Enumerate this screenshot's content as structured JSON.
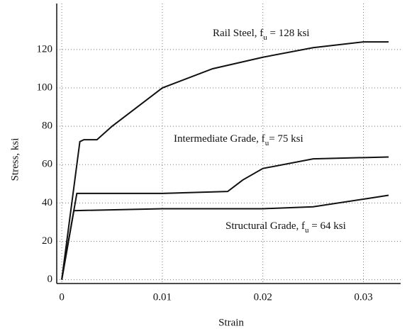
{
  "chart_data": {
    "type": "line",
    "xlabel": "Strain",
    "ylabel": "Stress, ksi",
    "xlim": [
      -0.0005,
      0.0337
    ],
    "ylim": [
      -2,
      144
    ],
    "xticks": [
      0,
      0.01,
      0.02,
      0.03
    ],
    "yticks": [
      0,
      20,
      40,
      60,
      80,
      100,
      120
    ],
    "grid": true,
    "series": [
      {
        "name": "Rail Steel",
        "color": "#111111",
        "x": [
          0,
          0.0018,
          0.0022,
          0.0035,
          0.005,
          0.008,
          0.01,
          0.015,
          0.02,
          0.025,
          0.03,
          0.0325
        ],
        "values": [
          0,
          72,
          73,
          73,
          80,
          92,
          100,
          110,
          116,
          121,
          124,
          124
        ]
      },
      {
        "name": "Intermediate Grade",
        "color": "#111111",
        "x": [
          0,
          0.0015,
          0.005,
          0.01,
          0.0165,
          0.018,
          0.02,
          0.025,
          0.0325
        ],
        "values": [
          0,
          45,
          45,
          45,
          46,
          52,
          58,
          63,
          64
        ]
      },
      {
        "name": "Structural Grade",
        "color": "#111111",
        "x": [
          0,
          0.0012,
          0.01,
          0.02,
          0.025,
          0.03,
          0.0325
        ],
        "values": [
          0,
          36,
          37,
          37,
          38,
          42,
          44
        ]
      }
    ],
    "annotations": [
      {
        "text": "Rail Steel, f",
        "sub": "u",
        "rest": " = 128 ksi"
      },
      {
        "text": "Intermediate Grade, f",
        "sub": "u",
        "rest": "= 75 ksi"
      },
      {
        "text": "Structural Grade, f",
        "sub": "u",
        "rest": " = 64 ksi"
      }
    ]
  }
}
